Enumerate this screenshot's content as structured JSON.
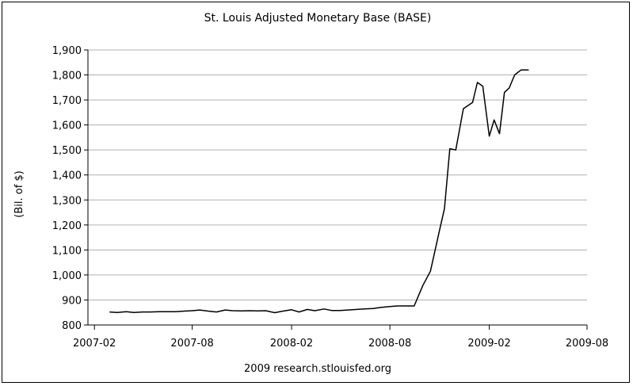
{
  "chart_data": {
    "type": "line",
    "title": "St. Louis Adjusted Monetary Base (BASE)",
    "ylabel": "(Bil. of $)",
    "xlabel": "",
    "credit": "2009 research.stlouisfed.org",
    "ylim": [
      800,
      1900
    ],
    "yticks": [
      800,
      900,
      1000,
      1100,
      1200,
      1300,
      1400,
      1500,
      1600,
      1700,
      1800,
      1900
    ],
    "ytick_labels": [
      "800",
      "900",
      "1,000",
      "1,100",
      "1,200",
      "1,300",
      "1,400",
      "1,500",
      "1,600",
      "1,700",
      "1,800",
      "1,900"
    ],
    "xticks": [
      "2007-02",
      "2007-08",
      "2008-02",
      "2008-08",
      "2009-02",
      "2009-08"
    ],
    "xlim": [
      "2007-01",
      "2009-08"
    ],
    "grid": true,
    "colors": {
      "line": "#000000",
      "grid": "#b0b0b0"
    },
    "series": [
      {
        "x": [
          "2007-03-01",
          "2007-03-15",
          "2007-04-01",
          "2007-04-15",
          "2007-05-01",
          "2007-05-15",
          "2007-06-01",
          "2007-06-15",
          "2007-07-01",
          "2007-07-15",
          "2007-08-01",
          "2007-08-15",
          "2007-09-01",
          "2007-09-15",
          "2007-10-01",
          "2007-10-15",
          "2007-11-01",
          "2007-11-15",
          "2007-12-01",
          "2007-12-15",
          "2008-01-01",
          "2008-01-15",
          "2008-02-01",
          "2008-02-15",
          "2008-03-01",
          "2008-03-15",
          "2008-04-01",
          "2008-04-15",
          "2008-05-01",
          "2008-05-15",
          "2008-06-01",
          "2008-06-15",
          "2008-07-01",
          "2008-07-15",
          "2008-08-01",
          "2008-08-15",
          "2008-09-01",
          "2008-09-15",
          "2008-10-01",
          "2008-10-15",
          "2008-11-01",
          "2008-11-10",
          "2008-11-20",
          "2008-12-01",
          "2008-12-15",
          "2009-01-01",
          "2009-01-10",
          "2009-01-20",
          "2009-02-01",
          "2009-02-10",
          "2009-02-20",
          "2009-03-01",
          "2009-03-10",
          "2009-03-20",
          "2009-04-01",
          "2009-04-15"
        ],
        "values": [
          852,
          850,
          853,
          850,
          852,
          852,
          853,
          853,
          853,
          855,
          857,
          860,
          855,
          852,
          860,
          857,
          856,
          857,
          856,
          857,
          849,
          855,
          861,
          852,
          862,
          857,
          864,
          858,
          858,
          860,
          862,
          864,
          866,
          870,
          874,
          876,
          876,
          876,
          958,
          1015,
          1180,
          1265,
          1505,
          1500,
          1665,
          1690,
          1770,
          1755,
          1555,
          1620,
          1565,
          1730,
          1748,
          1800,
          1820,
          1820
        ]
      }
    ]
  }
}
